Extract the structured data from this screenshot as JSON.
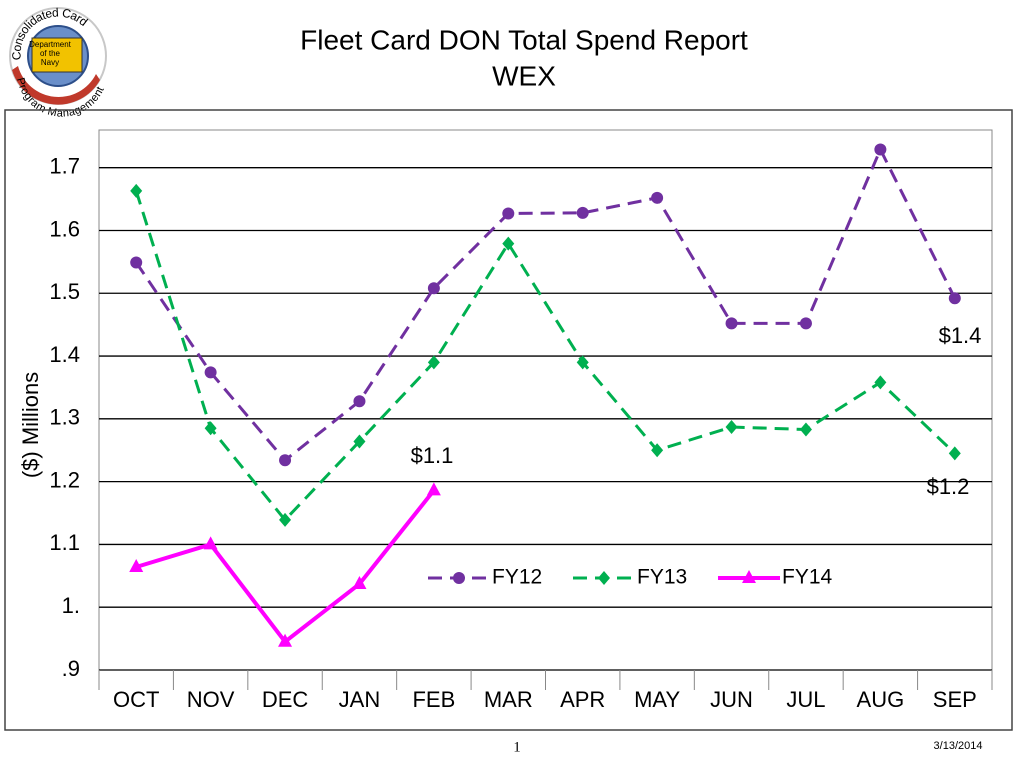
{
  "logo": {
    "top_text": "Consolidated Card",
    "bottom_text": "Program Management",
    "center_text": [
      "Department",
      "of the",
      "Navy"
    ]
  },
  "chart_data": {
    "type": "line",
    "title": "Fleet Card DON Total Spend Report",
    "subtitle": "WEX",
    "y_label": "($) Millions",
    "categories": [
      "OCT",
      "NOV",
      "DEC",
      "JAN",
      "FEB",
      "MAR",
      "APR",
      "MAY",
      "JUN",
      "JUL",
      "AUG",
      "SEP"
    ],
    "series": [
      {
        "name": "FY12",
        "color": "#7030a0",
        "marker": "circle",
        "dashed": true,
        "values": [
          1.549,
          1.374,
          1.234,
          1.328,
          1.508,
          1.627,
          1.628,
          1.652,
          1.452,
          1.452,
          1.729,
          1.492
        ]
      },
      {
        "name": "FY13",
        "color": "#00b050",
        "marker": "diamond",
        "dashed": true,
        "values": [
          1.663,
          1.285,
          1.139,
          1.264,
          1.39,
          1.579,
          1.39,
          1.25,
          1.287,
          1.283,
          1.358,
          1.245
        ]
      },
      {
        "name": "FY14",
        "color": "#ff00ff",
        "marker": "triangle",
        "dashed": false,
        "values": [
          1.064,
          1.1,
          0.945,
          1.037,
          1.186,
          null,
          null,
          null,
          null,
          null,
          null,
          null
        ]
      }
    ],
    "ylim": [
      0.9,
      1.76
    ],
    "yticks": [
      1.7,
      1.6,
      1.5,
      1.4,
      1.3,
      1.2,
      1.1,
      {
        "value": 1,
        "label": "1."
      },
      {
        "value": 0.9,
        "label": ".9"
      }
    ],
    "grid": true,
    "annotations": [
      "$1.4",
      "$1.1",
      "$1.2"
    ]
  },
  "footer": {
    "page": "1",
    "date": "3/13/2014"
  }
}
